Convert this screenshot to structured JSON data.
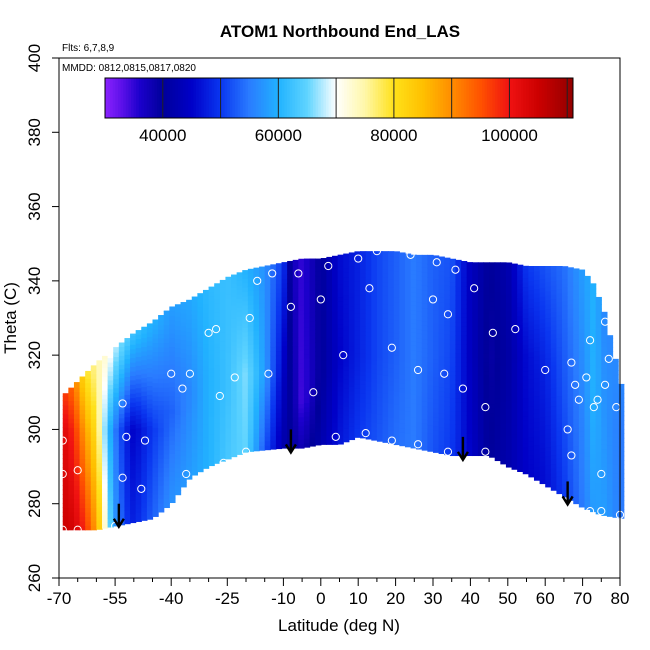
{
  "chart_data": {
    "type": "heatmap",
    "title": "ATOM1 Northbound End_LAS",
    "annotations": {
      "flights": "Flts: 6,7,8,9",
      "dates": "MMDD: 0812,0815,0817,0820"
    },
    "xlabel": "Latitude (deg N)",
    "ylabel": "Theta (C)",
    "xlim": [
      -70,
      80
    ],
    "ylim": [
      260,
      400
    ],
    "x_major_ticks": [
      -70,
      -55,
      -40,
      -25,
      -10,
      0,
      10,
      20,
      30,
      40,
      50,
      60,
      70,
      80
    ],
    "x_tick_labels": [
      "-70",
      "-55",
      "-40",
      "-25",
      "-10",
      "0",
      "10",
      "20",
      "30",
      "40",
      "50",
      "60",
      "70",
      "80"
    ],
    "x_minor_ticks": [
      -65,
      -60,
      -50,
      -45,
      -35,
      -30,
      -20,
      -15,
      -5,
      5,
      15,
      25,
      35,
      45,
      55,
      65,
      75
    ],
    "y_ticks": [
      260,
      280,
      300,
      320,
      340,
      360,
      380,
      400
    ],
    "y_tick_labels": [
      "260",
      "280",
      "300",
      "320",
      "340",
      "360",
      "380",
      "400"
    ],
    "colorbar": {
      "min": 30000,
      "max": 111000,
      "ticks": [
        40000,
        60000,
        80000,
        100000
      ],
      "tick_labels": [
        "40000",
        "60000",
        "80000",
        "100000"
      ],
      "divisions": [
        40000,
        50000,
        60000,
        70000,
        80000,
        90000,
        100000,
        110000
      ],
      "stops": [
        {
          "v": 30000,
          "c": "#8b22ff"
        },
        {
          "v": 33000,
          "c": "#5a10e8"
        },
        {
          "v": 36000,
          "c": "#1c00cc"
        },
        {
          "v": 40000,
          "c": "#00009a"
        },
        {
          "v": 45000,
          "c": "#0000c8"
        },
        {
          "v": 50000,
          "c": "#0a36f0"
        },
        {
          "v": 55000,
          "c": "#2a7cff"
        },
        {
          "v": 60000,
          "c": "#21b2ff"
        },
        {
          "v": 65000,
          "c": "#5fd4ff"
        },
        {
          "v": 70000,
          "c": "#ffffff"
        },
        {
          "v": 75000,
          "c": "#fff7a8"
        },
        {
          "v": 80000,
          "c": "#ffe11a"
        },
        {
          "v": 85000,
          "c": "#ffc000"
        },
        {
          "v": 90000,
          "c": "#ff8d00"
        },
        {
          "v": 95000,
          "c": "#ff5200"
        },
        {
          "v": 100000,
          "c": "#f01212"
        },
        {
          "v": 105000,
          "c": "#cc0000"
        },
        {
          "v": 111000,
          "c": "#920000"
        }
      ]
    },
    "upper_boundary": [
      [
        -69,
        309
      ],
      [
        -65,
        313
      ],
      [
        -60,
        318
      ],
      [
        -55,
        322
      ],
      [
        -50,
        326
      ],
      [
        -45,
        329
      ],
      [
        -40,
        333
      ],
      [
        -35,
        335
      ],
      [
        -30,
        338
      ],
      [
        -25,
        341
      ],
      [
        -20,
        343
      ],
      [
        -15,
        344
      ],
      [
        -10,
        345
      ],
      [
        -5,
        346
      ],
      [
        0,
        346
      ],
      [
        5,
        347
      ],
      [
        10,
        348
      ],
      [
        15,
        348
      ],
      [
        20,
        348
      ],
      [
        25,
        347
      ],
      [
        30,
        347
      ],
      [
        35,
        346
      ],
      [
        40,
        345
      ],
      [
        45,
        345
      ],
      [
        50,
        345
      ],
      [
        55,
        344
      ],
      [
        60,
        344
      ],
      [
        65,
        344
      ],
      [
        70,
        343
      ],
      [
        73,
        339
      ],
      [
        76,
        331
      ],
      [
        78,
        322
      ],
      [
        80,
        314
      ],
      [
        81,
        307
      ]
    ],
    "lower_boundary": [
      [
        -69,
        273
      ],
      [
        -60,
        273
      ],
      [
        -55,
        274
      ],
      [
        -50,
        275
      ],
      [
        -45,
        276
      ],
      [
        -40,
        280
      ],
      [
        -35,
        287
      ],
      [
        -30,
        290
      ],
      [
        -25,
        292
      ],
      [
        -20,
        294
      ],
      [
        -10,
        295
      ],
      [
        -5,
        295
      ],
      [
        0,
        296
      ],
      [
        5,
        296
      ],
      [
        10,
        298
      ],
      [
        15,
        297
      ],
      [
        20,
        296
      ],
      [
        25,
        295
      ],
      [
        30,
        294
      ],
      [
        35,
        293
      ],
      [
        40,
        293
      ],
      [
        45,
        293
      ],
      [
        50,
        290
      ],
      [
        55,
        288
      ],
      [
        60,
        285
      ],
      [
        65,
        282
      ],
      [
        70,
        279
      ],
      [
        75,
        277
      ],
      [
        81,
        276
      ]
    ],
    "field_profile": [
      {
        "lat": -69,
        "band": [
          [
            273,
            105000
          ],
          [
            300,
            103000
          ],
          [
            309,
            98000
          ]
        ]
      },
      {
        "lat": -66,
        "band": [
          [
            273,
            104000
          ],
          [
            300,
            98000
          ],
          [
            313,
            92000
          ]
        ]
      },
      {
        "lat": -63,
        "band": [
          [
            273,
            98000
          ],
          [
            300,
            88000
          ],
          [
            315,
            80000
          ]
        ]
      },
      {
        "lat": -60,
        "band": [
          [
            273,
            88000
          ],
          [
            300,
            80000
          ],
          [
            318,
            75000
          ]
        ]
      },
      {
        "lat": -57,
        "band": [
          [
            273,
            68000
          ],
          [
            300,
            62000
          ],
          [
            320,
            72000
          ]
        ]
      },
      {
        "lat": -55,
        "band": [
          [
            273,
            58000
          ],
          [
            300,
            55000
          ],
          [
            322,
            68000
          ]
        ]
      },
      {
        "lat": -52,
        "band": [
          [
            273,
            50000
          ],
          [
            300,
            48000
          ],
          [
            324,
            64000
          ]
        ]
      },
      {
        "lat": -50,
        "band": [
          [
            273,
            48000
          ],
          [
            300,
            45000
          ],
          [
            326,
            62000
          ]
        ]
      },
      {
        "lat": -45,
        "band": [
          [
            276,
            53000
          ],
          [
            300,
            50000
          ],
          [
            329,
            60000
          ]
        ]
      },
      {
        "lat": -40,
        "band": [
          [
            280,
            57000
          ],
          [
            305,
            53000
          ],
          [
            333,
            58000
          ]
        ]
      },
      {
        "lat": -35,
        "band": [
          [
            287,
            58000
          ],
          [
            310,
            56000
          ],
          [
            335,
            59000
          ]
        ]
      },
      {
        "lat": -30,
        "band": [
          [
            290,
            60000
          ],
          [
            315,
            60000
          ],
          [
            338,
            61000
          ]
        ]
      },
      {
        "lat": -25,
        "band": [
          [
            292,
            63000
          ],
          [
            312,
            62000
          ],
          [
            341,
            62000
          ]
        ]
      },
      {
        "lat": -20,
        "band": [
          [
            294,
            65000
          ],
          [
            315,
            66000
          ],
          [
            343,
            60000
          ]
        ]
      },
      {
        "lat": -15,
        "band": [
          [
            294,
            52000
          ],
          [
            315,
            58000
          ],
          [
            344,
            57000
          ]
        ]
      },
      {
        "lat": -10,
        "band": [
          [
            295,
            42000
          ],
          [
            312,
            44000
          ],
          [
            345,
            50000
          ]
        ]
      },
      {
        "lat": -8,
        "band": [
          [
            295,
            40000
          ],
          [
            310,
            40000
          ],
          [
            345,
            38000
          ]
        ]
      },
      {
        "lat": -5,
        "band": [
          [
            295,
            38000
          ],
          [
            308,
            34000
          ],
          [
            346,
            35000
          ]
        ]
      },
      {
        "lat": 0,
        "band": [
          [
            296,
            42000
          ],
          [
            315,
            40000
          ],
          [
            346,
            40000
          ]
        ]
      },
      {
        "lat": 5,
        "band": [
          [
            296,
            47000
          ],
          [
            320,
            45000
          ],
          [
            347,
            46000
          ]
        ]
      },
      {
        "lat": 10,
        "band": [
          [
            298,
            50000
          ],
          [
            320,
            48000
          ],
          [
            348,
            48000
          ]
        ]
      },
      {
        "lat": 15,
        "band": [
          [
            297,
            52000
          ],
          [
            320,
            51000
          ],
          [
            348,
            51000
          ]
        ]
      },
      {
        "lat": 20,
        "band": [
          [
            296,
            54000
          ],
          [
            320,
            53000
          ],
          [
            348,
            53000
          ]
        ]
      },
      {
        "lat": 25,
        "band": [
          [
            295,
            55000
          ],
          [
            320,
            55000
          ],
          [
            347,
            55000
          ]
        ]
      },
      {
        "lat": 30,
        "band": [
          [
            294,
            52000
          ],
          [
            320,
            53000
          ],
          [
            347,
            53000
          ]
        ]
      },
      {
        "lat": 35,
        "band": [
          [
            293,
            50000
          ],
          [
            320,
            51000
          ],
          [
            346,
            52000
          ]
        ]
      },
      {
        "lat": 40,
        "band": [
          [
            293,
            45000
          ],
          [
            320,
            44000
          ],
          [
            345,
            44000
          ]
        ]
      },
      {
        "lat": 45,
        "band": [
          [
            293,
            40000
          ],
          [
            320,
            39000
          ],
          [
            345,
            40000
          ]
        ]
      },
      {
        "lat": 50,
        "band": [
          [
            290,
            42000
          ],
          [
            320,
            41000
          ],
          [
            345,
            42000
          ]
        ]
      },
      {
        "lat": 55,
        "band": [
          [
            288,
            45000
          ],
          [
            320,
            46000
          ],
          [
            344,
            50000
          ]
        ]
      },
      {
        "lat": 60,
        "band": [
          [
            285,
            46000
          ],
          [
            315,
            48000
          ],
          [
            344,
            52000
          ]
        ]
      },
      {
        "lat": 65,
        "band": [
          [
            282,
            50000
          ],
          [
            310,
            52000
          ],
          [
            344,
            54000
          ]
        ]
      },
      {
        "lat": 70,
        "band": [
          [
            279,
            55000
          ],
          [
            308,
            56000
          ],
          [
            343,
            58000
          ]
        ]
      },
      {
        "lat": 73,
        "band": [
          [
            277,
            58000
          ],
          [
            308,
            60000
          ],
          [
            339,
            60000
          ]
        ]
      },
      {
        "lat": 76,
        "band": [
          [
            277,
            58000
          ],
          [
            305,
            57000
          ],
          [
            331,
            56000
          ]
        ]
      },
      {
        "lat": 80,
        "band": [
          [
            276,
            55000
          ],
          [
            300,
            55000
          ],
          [
            314,
            56000
          ]
        ]
      }
    ],
    "sample_points": [
      {
        "lat": -69,
        "theta": 288
      },
      {
        "lat": -69,
        "theta": 297
      },
      {
        "lat": -69,
        "theta": 273
      },
      {
        "lat": -65,
        "theta": 289
      },
      {
        "lat": -65,
        "theta": 273
      },
      {
        "lat": -55,
        "theta": 274
      },
      {
        "lat": -53,
        "theta": 287
      },
      {
        "lat": -52,
        "theta": 298
      },
      {
        "lat": -53,
        "theta": 307
      },
      {
        "lat": -48,
        "theta": 284
      },
      {
        "lat": -47,
        "theta": 297
      },
      {
        "lat": -40,
        "theta": 315
      },
      {
        "lat": -37,
        "theta": 311
      },
      {
        "lat": -36,
        "theta": 288
      },
      {
        "lat": -35,
        "theta": 315
      },
      {
        "lat": -30,
        "theta": 326
      },
      {
        "lat": -28,
        "theta": 327
      },
      {
        "lat": -27,
        "theta": 309
      },
      {
        "lat": -26,
        "theta": 291
      },
      {
        "lat": -23,
        "theta": 314
      },
      {
        "lat": -20,
        "theta": 294
      },
      {
        "lat": -19,
        "theta": 330
      },
      {
        "lat": -17,
        "theta": 340
      },
      {
        "lat": -13,
        "theta": 342
      },
      {
        "lat": -14,
        "theta": 315
      },
      {
        "lat": -8,
        "theta": 333
      },
      {
        "lat": -6,
        "theta": 342
      },
      {
        "lat": -2,
        "theta": 310
      },
      {
        "lat": 0,
        "theta": 335
      },
      {
        "lat": 2,
        "theta": 344
      },
      {
        "lat": 4,
        "theta": 298
      },
      {
        "lat": 6,
        "theta": 320
      },
      {
        "lat": 10,
        "theta": 346
      },
      {
        "lat": 12,
        "theta": 299
      },
      {
        "lat": 13,
        "theta": 338
      },
      {
        "lat": 15,
        "theta": 348
      },
      {
        "lat": 19,
        "theta": 297
      },
      {
        "lat": 19,
        "theta": 322
      },
      {
        "lat": 24,
        "theta": 347
      },
      {
        "lat": 26,
        "theta": 316
      },
      {
        "lat": 26,
        "theta": 296
      },
      {
        "lat": 30,
        "theta": 335
      },
      {
        "lat": 31,
        "theta": 345
      },
      {
        "lat": 33,
        "theta": 315
      },
      {
        "lat": 34,
        "theta": 331
      },
      {
        "lat": 34,
        "theta": 294
      },
      {
        "lat": 36,
        "theta": 343
      },
      {
        "lat": 38,
        "theta": 311
      },
      {
        "lat": 41,
        "theta": 338
      },
      {
        "lat": 44,
        "theta": 294
      },
      {
        "lat": 44,
        "theta": 306
      },
      {
        "lat": 46,
        "theta": 326
      },
      {
        "lat": 52,
        "theta": 327
      },
      {
        "lat": 60,
        "theta": 316
      },
      {
        "lat": 66,
        "theta": 300
      },
      {
        "lat": 67,
        "theta": 293
      },
      {
        "lat": 67,
        "theta": 318
      },
      {
        "lat": 68,
        "theta": 312
      },
      {
        "lat": 69,
        "theta": 308
      },
      {
        "lat": 71,
        "theta": 314
      },
      {
        "lat": 72,
        "theta": 324
      },
      {
        "lat": 72,
        "theta": 278
      },
      {
        "lat": 73,
        "theta": 306
      },
      {
        "lat": 74,
        "theta": 308
      },
      {
        "lat": 75,
        "theta": 288
      },
      {
        "lat": 75,
        "theta": 278
      },
      {
        "lat": 76,
        "theta": 329
      },
      {
        "lat": 76,
        "theta": 312
      },
      {
        "lat": 77,
        "theta": 319
      },
      {
        "lat": 79,
        "theta": 306
      },
      {
        "lat": 80,
        "theta": 277
      }
    ],
    "arrows": [
      {
        "lat": -54,
        "theta": 280
      },
      {
        "lat": -8,
        "theta": 300
      },
      {
        "lat": 38,
        "theta": 298
      },
      {
        "lat": 66,
        "theta": 286
      }
    ]
  }
}
